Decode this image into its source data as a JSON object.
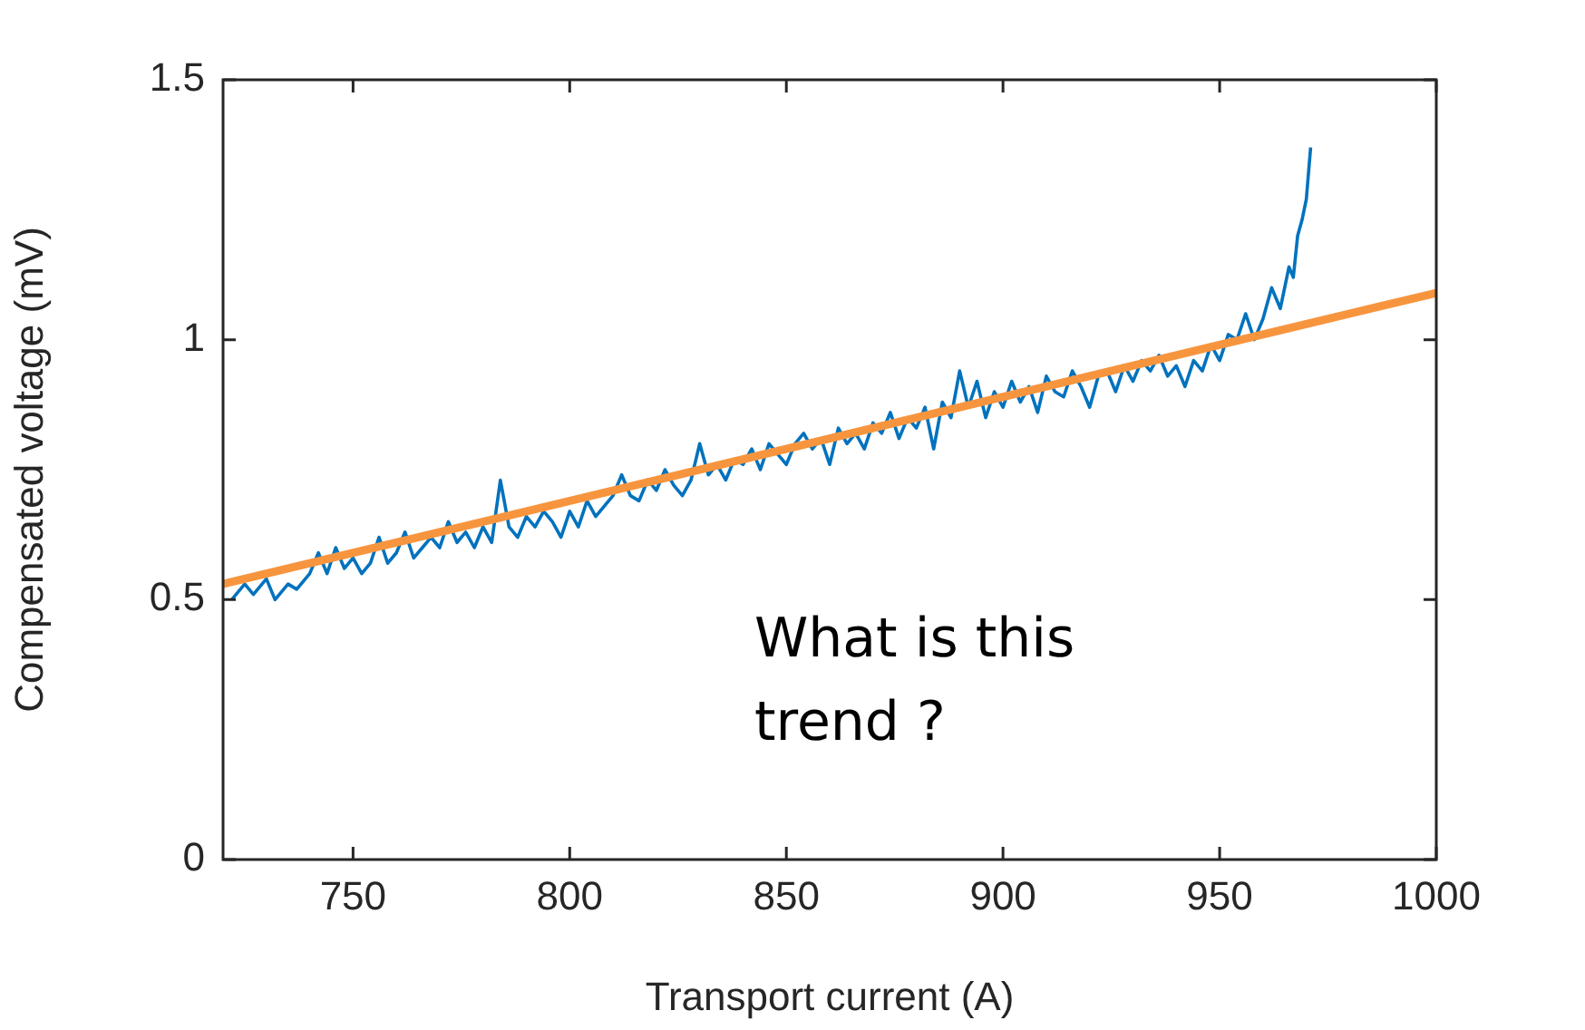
{
  "chart_data": {
    "type": "line",
    "xlabel": "Transport current (A)",
    "ylabel": "Compensated voltage (mV)",
    "xlim": [
      720,
      1000
    ],
    "xticks": [
      750,
      800,
      850,
      900,
      950,
      1000
    ],
    "ylim": [
      0,
      1.5
    ],
    "yticks": [
      0,
      0.5,
      1,
      1.5
    ],
    "grid": false,
    "legend": false,
    "marker": "none",
    "annotations": [
      "What is this trend ?"
    ],
    "series": [
      {
        "color": "#0072bd",
        "x": [
          722,
          725,
          727,
          730,
          732,
          735,
          737,
          740,
          742,
          744,
          746,
          748,
          750,
          752,
          754,
          756,
          758,
          760,
          762,
          764,
          766,
          768,
          770,
          772,
          774,
          776,
          778,
          780,
          782,
          784,
          786,
          788,
          790,
          792,
          794,
          796,
          798,
          800,
          802,
          804,
          806,
          808,
          810,
          812,
          814,
          816,
          818,
          820,
          822,
          824,
          826,
          828,
          830,
          832,
          834,
          836,
          838,
          840,
          842,
          844,
          846,
          848,
          850,
          852,
          854,
          856,
          858,
          860,
          862,
          864,
          866,
          868,
          870,
          872,
          874,
          876,
          878,
          880,
          882,
          884,
          886,
          888,
          890,
          892,
          894,
          896,
          898,
          900,
          902,
          904,
          906,
          908,
          910,
          912,
          914,
          916,
          918,
          920,
          922,
          924,
          926,
          928,
          930,
          932,
          934,
          936,
          938,
          940,
          942,
          944,
          946,
          948,
          950,
          952,
          954,
          956,
          958,
          960,
          962,
          964,
          966,
          967,
          968,
          969,
          970,
          971
        ],
        "values": [
          0.5,
          0.53,
          0.51,
          0.54,
          0.5,
          0.53,
          0.52,
          0.55,
          0.59,
          0.55,
          0.6,
          0.56,
          0.58,
          0.55,
          0.57,
          0.62,
          0.57,
          0.59,
          0.63,
          0.58,
          0.6,
          0.62,
          0.6,
          0.65,
          0.61,
          0.63,
          0.6,
          0.64,
          0.61,
          0.73,
          0.64,
          0.62,
          0.66,
          0.64,
          0.67,
          0.65,
          0.62,
          0.67,
          0.64,
          0.69,
          0.66,
          0.68,
          0.7,
          0.74,
          0.7,
          0.69,
          0.73,
          0.71,
          0.75,
          0.72,
          0.7,
          0.73,
          0.8,
          0.74,
          0.76,
          0.73,
          0.77,
          0.76,
          0.79,
          0.75,
          0.8,
          0.78,
          0.76,
          0.8,
          0.82,
          0.79,
          0.81,
          0.76,
          0.83,
          0.8,
          0.82,
          0.79,
          0.84,
          0.82,
          0.86,
          0.81,
          0.85,
          0.83,
          0.87,
          0.79,
          0.88,
          0.85,
          0.94,
          0.87,
          0.92,
          0.85,
          0.9,
          0.87,
          0.92,
          0.88,
          0.91,
          0.86,
          0.93,
          0.9,
          0.89,
          0.94,
          0.91,
          0.87,
          0.93,
          0.94,
          0.9,
          0.95,
          0.92,
          0.96,
          0.94,
          0.97,
          0.93,
          0.95,
          0.91,
          0.96,
          0.94,
          0.99,
          0.96,
          1.01,
          1.0,
          1.05,
          1.0,
          1.04,
          1.1,
          1.06,
          1.14,
          1.12,
          1.2,
          1.23,
          1.27,
          1.37
        ]
      },
      {
        "type": "line",
        "color": "#f7953f",
        "x": [
          720,
          1000
        ],
        "values": [
          0.53,
          1.09
        ]
      }
    ]
  }
}
